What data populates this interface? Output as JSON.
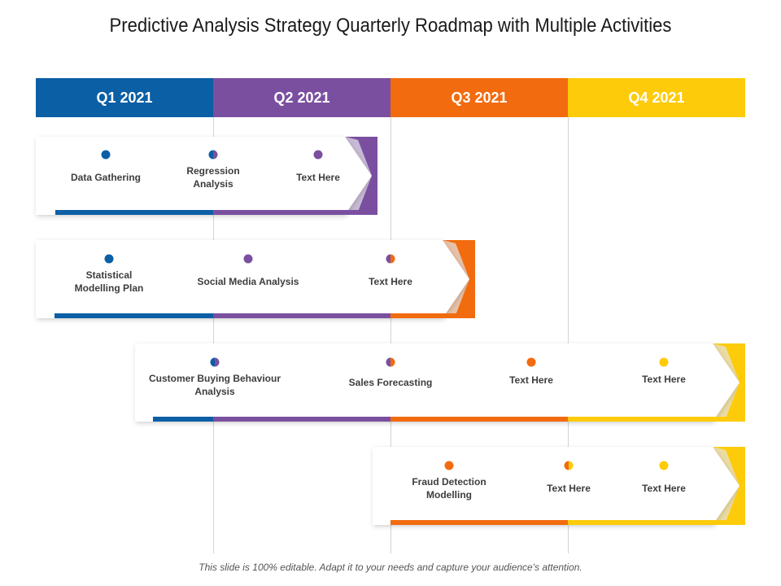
{
  "title": "Predictive Analysis Strategy Quarterly Roadmap with Multiple Activities",
  "footer": "This slide is 100% editable. Adapt it to your needs and capture your audience's attention.",
  "colors": {
    "q1": "#0B5FA5",
    "q2": "#7A4FA0",
    "q3": "#F26B0F",
    "q4": "#FDCB0A"
  },
  "quarters": [
    "Q1 2021",
    "Q2 2021",
    "Q3 2021",
    "Q4 2021"
  ],
  "rows": [
    {
      "activities": [
        "Data Gathering",
        "Regression Analysis",
        "Text Here"
      ]
    },
    {
      "activities": [
        "Statistical Modelling Plan",
        "Social Media Analysis",
        "Text Here"
      ]
    },
    {
      "activities": [
        "Customer Buying Behaviour Analysis",
        "Sales Forecasting",
        "Text Here",
        "Text Here"
      ]
    },
    {
      "activities": [
        "Fraud Detection Modelling",
        "Text Here",
        "Text Here"
      ]
    }
  ]
}
